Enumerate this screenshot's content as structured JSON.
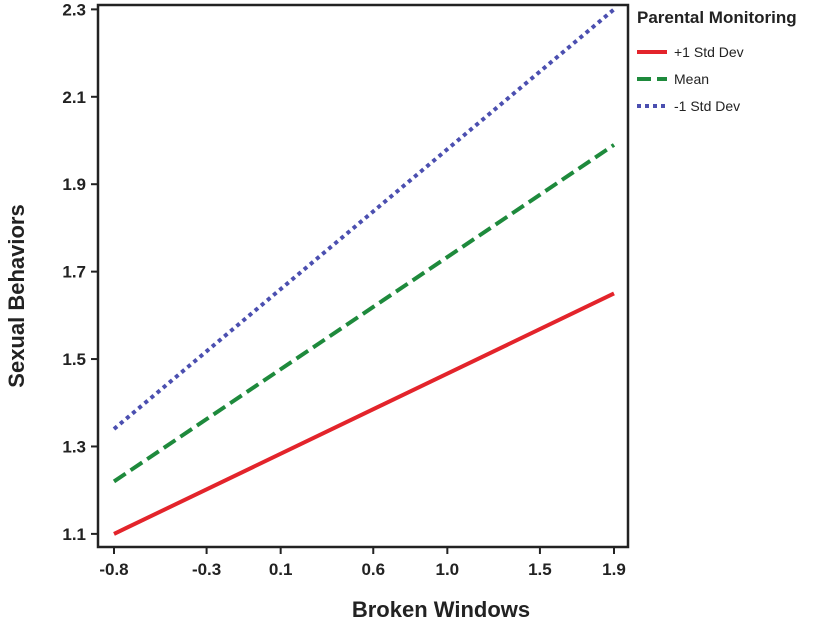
{
  "chart_data": {
    "type": "line",
    "xlabel": "Broken Windows",
    "ylabel": "Sexual Behaviors",
    "x_ticks": [
      "-0.8",
      "-0.3",
      "0.1",
      "0.6",
      "1.0",
      "1.5",
      "1.9"
    ],
    "y_ticks": [
      "1.1",
      "1.3",
      "1.5",
      "1.7",
      "1.9",
      "2.1",
      "2.3"
    ],
    "xlim": [
      -0.8,
      1.9
    ],
    "ylim": [
      1.07,
      2.31
    ],
    "legend_title": "Parental Monitoring",
    "legend_position": "top-right",
    "grid": false,
    "series": [
      {
        "name": "+1 Std Dev",
        "color": "#e3242b",
        "style": "solid",
        "x": [
          -0.8,
          1.9
        ],
        "y": [
          1.1,
          1.65
        ]
      },
      {
        "name": "Mean",
        "color": "#1e8a3c",
        "style": "dashed",
        "x": [
          -0.8,
          1.9
        ],
        "y": [
          1.22,
          1.99
        ]
      },
      {
        "name": "-1 Std Dev",
        "color": "#4b4fb0",
        "style": "dotted",
        "x": [
          -0.8,
          1.9
        ],
        "y": [
          1.34,
          2.3
        ]
      }
    ]
  }
}
